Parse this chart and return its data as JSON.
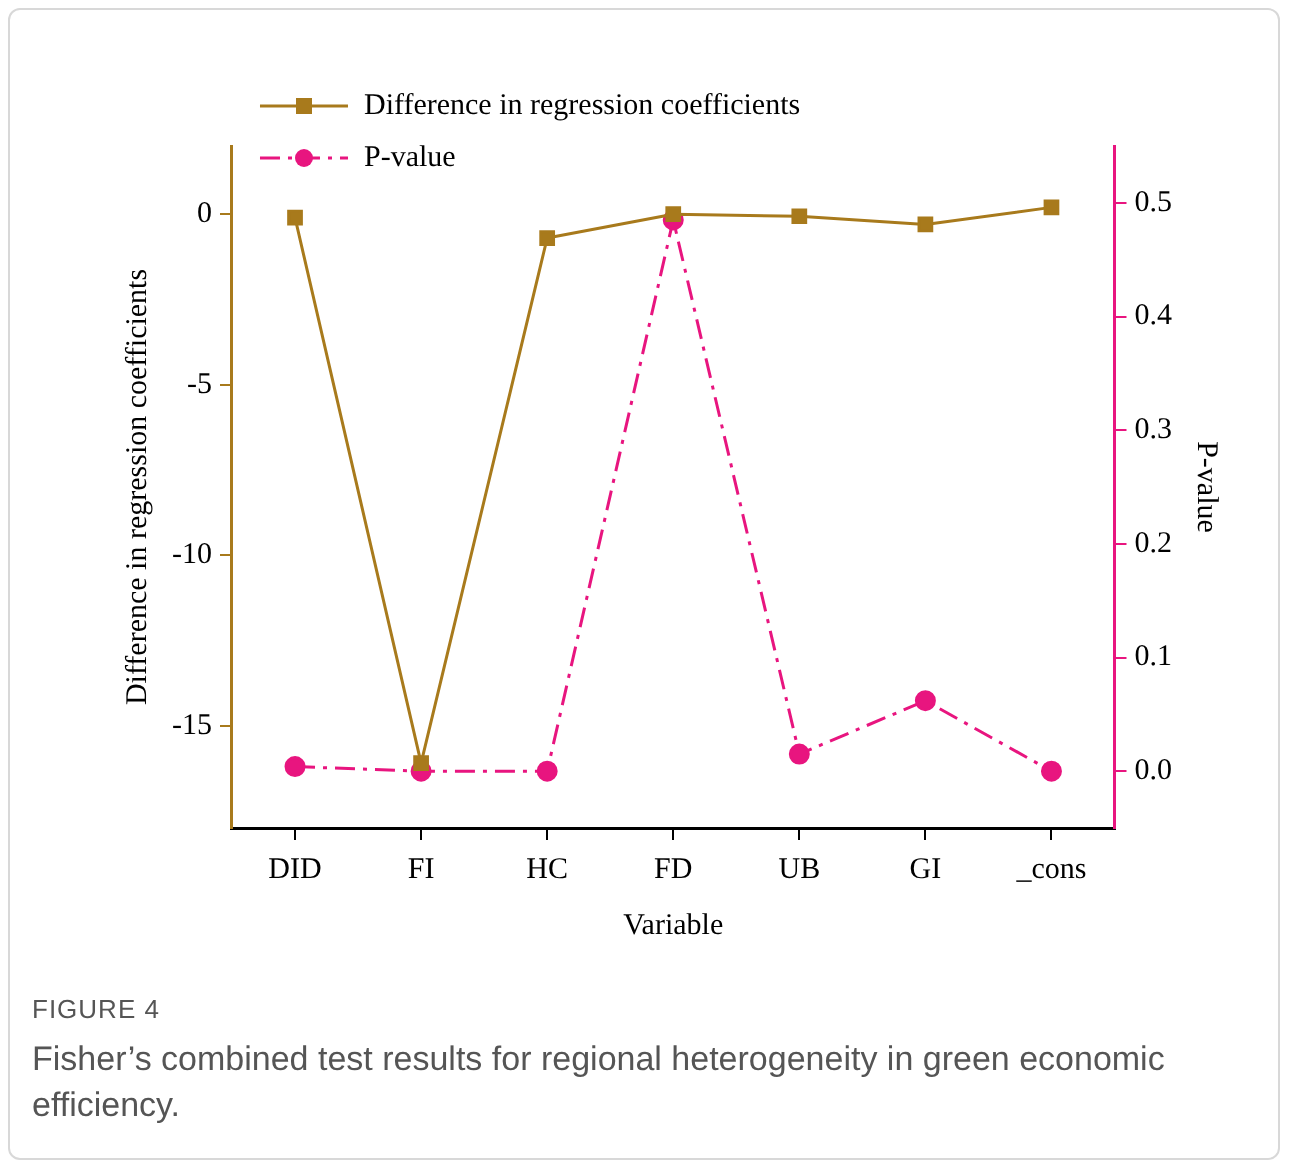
{
  "chart_data": {
    "type": "line",
    "xlabel": "Variable",
    "ylabel": "Difference in regression coefficients",
    "y2label": "P-value",
    "categories": [
      "DID",
      "FI",
      "HC",
      "FD",
      "UB",
      "GI",
      "_cons"
    ],
    "series": [
      {
        "name": "Difference in regression coefficients",
        "color": "#a87a1c",
        "values": [
          -0.1,
          -16.1,
          -0.7,
          0,
          -0.06,
          -0.3,
          0.2
        ],
        "marker": "square",
        "line_style": "solid"
      },
      {
        "name": "P-value",
        "color": "#e8157f",
        "axis": "y2",
        "values": [
          0.004,
          0,
          0,
          0.485,
          0.015,
          0.062,
          0
        ],
        "marker": "circle",
        "line_style": "dashdot"
      }
    ],
    "ylim": [
      -18,
      2
    ],
    "yticks": [
      -15,
      -10,
      -5,
      0
    ],
    "y2lim": [
      -0.05,
      0.55
    ],
    "y2ticks": [
      {
        "value": 0,
        "label": "0.0"
      },
      0.1,
      0.2,
      0.3,
      0.4,
      0.5
    ],
    "grid": false,
    "legend": "top left",
    "annotations": [
      "FIGURE 4",
      "Fisher’s combined test results for regional heterogeneity in green economic efficiency."
    ]
  }
}
